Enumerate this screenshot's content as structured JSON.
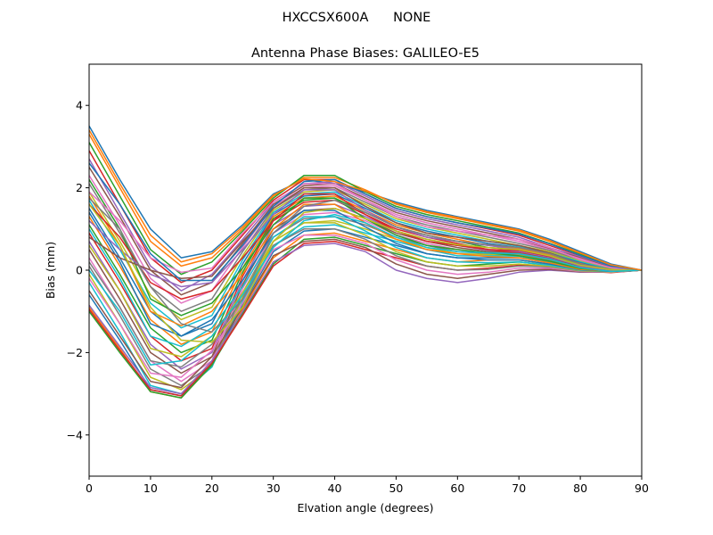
{
  "suptitle": "HXCCSX600A      NONE",
  "chart_data": {
    "type": "line",
    "title": "Antenna Phase Biases: GALILEO-E5",
    "xlabel": "Elvation angle (degrees)",
    "ylabel": "Bias (mm)",
    "xlim": [
      0,
      90
    ],
    "ylim": [
      -5,
      5
    ],
    "xticks": [
      0,
      10,
      20,
      30,
      40,
      50,
      60,
      70,
      80,
      90
    ],
    "yticks": [
      -4,
      -2,
      0,
      2,
      4
    ],
    "x": [
      0,
      5,
      10,
      15,
      20,
      25,
      30,
      35,
      40,
      45,
      50,
      55,
      60,
      65,
      70,
      75,
      80,
      85,
      90
    ],
    "grid": false,
    "legend": "none",
    "color_cycle": [
      "#1f77b4",
      "#ff7f0e",
      "#2ca02c",
      "#d62728",
      "#9467bd",
      "#8c564b",
      "#e377c2",
      "#7f7f7f",
      "#bcbd22",
      "#17becf"
    ],
    "series": [
      {
        "values": [
          3.5,
          2.2,
          1.0,
          0.3,
          0.45,
          1.1,
          1.85,
          2.2,
          2.1,
          1.9,
          1.65,
          1.45,
          1.3,
          1.15,
          1.0,
          0.75,
          0.45,
          0.15,
          0.0
        ]
      },
      {
        "values": [
          3.3,
          2.0,
          0.7,
          0.1,
          0.3,
          1.0,
          1.8,
          2.25,
          2.25,
          1.95,
          1.6,
          1.4,
          1.25,
          1.1,
          0.95,
          0.7,
          0.4,
          0.12,
          0.0
        ]
      },
      {
        "values": [
          3.1,
          1.8,
          0.5,
          -0.1,
          0.2,
          0.95,
          1.75,
          2.3,
          2.3,
          1.9,
          1.55,
          1.35,
          1.2,
          1.05,
          0.9,
          0.65,
          0.38,
          0.1,
          0.0
        ]
      },
      {
        "values": [
          2.9,
          1.6,
          0.3,
          -0.3,
          0.0,
          0.85,
          1.7,
          2.2,
          2.2,
          1.85,
          1.5,
          1.3,
          1.15,
          1.0,
          0.85,
          0.6,
          0.35,
          0.1,
          0.0
        ]
      },
      {
        "values": [
          2.7,
          1.4,
          0.1,
          -0.5,
          -0.1,
          0.75,
          1.65,
          2.1,
          2.15,
          1.8,
          1.45,
          1.25,
          1.1,
          0.95,
          0.8,
          0.55,
          0.32,
          0.08,
          0.0
        ]
      },
      {
        "values": [
          2.5,
          1.3,
          0.0,
          -0.6,
          -0.3,
          0.65,
          1.6,
          2.05,
          2.1,
          1.75,
          1.4,
          1.2,
          1.05,
          0.9,
          0.75,
          0.52,
          0.3,
          0.06,
          0.0
        ]
      },
      {
        "values": [
          2.3,
          1.1,
          -0.2,
          -0.8,
          -0.5,
          0.55,
          1.55,
          2.0,
          2.05,
          1.7,
          1.35,
          1.15,
          1.0,
          0.85,
          0.7,
          0.5,
          0.28,
          0.05,
          0.0
        ]
      },
      {
        "values": [
          2.1,
          0.9,
          -0.4,
          -1.0,
          -0.7,
          0.45,
          1.5,
          1.95,
          2.0,
          1.65,
          1.3,
          1.1,
          0.95,
          0.8,
          0.65,
          0.48,
          0.25,
          0.04,
          0.0
        ]
      },
      {
        "values": [
          1.9,
          0.7,
          -0.6,
          -1.2,
          -0.9,
          0.35,
          1.45,
          1.9,
          1.95,
          1.6,
          1.25,
          1.05,
          0.9,
          0.75,
          0.6,
          0.45,
          0.22,
          0.03,
          0.0
        ]
      },
      {
        "values": [
          1.7,
          0.5,
          -0.8,
          -1.4,
          -1.1,
          0.25,
          1.4,
          1.85,
          1.9,
          1.55,
          1.2,
          1.0,
          0.85,
          0.7,
          0.58,
          0.42,
          0.2,
          0.02,
          0.0
        ]
      },
      {
        "values": [
          1.5,
          0.3,
          -1.0,
          -1.6,
          -1.3,
          0.15,
          1.35,
          1.8,
          1.85,
          1.5,
          1.15,
          0.95,
          0.8,
          0.65,
          0.55,
          0.4,
          0.18,
          0.0,
          0.0
        ]
      },
      {
        "values": [
          1.3,
          0.1,
          -1.2,
          -1.8,
          -1.5,
          0.05,
          1.3,
          1.75,
          1.8,
          1.45,
          1.1,
          0.9,
          0.75,
          0.6,
          0.52,
          0.38,
          0.16,
          -0.01,
          0.0
        ]
      },
      {
        "values": [
          1.1,
          -0.1,
          -1.4,
          -2.0,
          -1.7,
          -0.05,
          1.25,
          1.7,
          1.75,
          1.4,
          1.05,
          0.85,
          0.7,
          0.55,
          0.5,
          0.35,
          0.14,
          -0.02,
          0.0
        ]
      },
      {
        "values": [
          0.9,
          -0.3,
          -1.6,
          -2.2,
          -1.9,
          -0.15,
          1.2,
          1.65,
          1.7,
          1.35,
          1.0,
          0.8,
          0.65,
          0.5,
          0.48,
          0.32,
          0.12,
          -0.03,
          0.0
        ]
      },
      {
        "values": [
          0.7,
          -0.5,
          -1.8,
          -2.4,
          -2.0,
          -0.25,
          1.1,
          1.55,
          1.6,
          1.3,
          0.95,
          0.75,
          0.6,
          0.48,
          0.45,
          0.3,
          0.1,
          -0.03,
          0.0
        ]
      },
      {
        "values": [
          0.5,
          -0.7,
          -2.0,
          -2.5,
          -2.1,
          -0.35,
          1.0,
          1.45,
          1.5,
          1.25,
          0.9,
          0.7,
          0.55,
          0.45,
          0.42,
          0.28,
          0.08,
          -0.04,
          0.0
        ]
      },
      {
        "values": [
          0.3,
          -0.9,
          -2.2,
          -2.7,
          -2.2,
          -0.45,
          0.9,
          1.35,
          1.4,
          1.2,
          0.85,
          0.65,
          0.5,
          0.42,
          0.4,
          0.26,
          0.06,
          -0.04,
          0.0
        ]
      },
      {
        "values": [
          0.1,
          -1.1,
          -2.4,
          -2.8,
          -2.3,
          -0.55,
          0.8,
          1.25,
          1.3,
          1.1,
          0.8,
          0.6,
          0.45,
          0.4,
          0.38,
          0.24,
          0.05,
          -0.05,
          0.0
        ]
      },
      {
        "values": [
          -0.1,
          -1.3,
          -2.6,
          -2.9,
          -2.35,
          -0.65,
          0.7,
          1.15,
          1.2,
          1.0,
          0.75,
          0.55,
          0.4,
          0.38,
          0.36,
          0.22,
          0.04,
          -0.05,
          0.0
        ]
      },
      {
        "values": [
          -0.3,
          -1.5,
          -2.8,
          -3.0,
          -2.35,
          -0.75,
          0.6,
          1.05,
          1.1,
          0.9,
          0.7,
          0.5,
          0.35,
          0.35,
          0.34,
          0.2,
          0.03,
          -0.05,
          0.0
        ]
      },
      {
        "values": [
          -0.6,
          -1.7,
          -2.9,
          -3.05,
          -2.3,
          -0.85,
          0.45,
          0.95,
          1.0,
          0.8,
          0.6,
          0.4,
          0.3,
          0.3,
          0.3,
          0.18,
          0.02,
          -0.05,
          0.0
        ]
      },
      {
        "values": [
          -0.9,
          -1.9,
          -2.95,
          -3.1,
          -2.3,
          -0.95,
          0.3,
          0.85,
          0.9,
          0.7,
          0.5,
          0.3,
          0.2,
          0.25,
          0.25,
          0.15,
          0.01,
          -0.05,
          0.0
        ]
      },
      {
        "values": [
          -1.0,
          -2.0,
          -2.95,
          -3.1,
          -2.3,
          -1.05,
          0.15,
          0.75,
          0.8,
          0.6,
          0.4,
          0.2,
          0.1,
          0.15,
          0.2,
          0.12,
          0.0,
          -0.05,
          0.0
        ]
      },
      {
        "values": [
          -0.95,
          -1.95,
          -2.9,
          -3.05,
          -2.25,
          -1.1,
          0.1,
          0.65,
          0.7,
          0.5,
          0.3,
          0.1,
          0.0,
          0.05,
          0.12,
          0.08,
          -0.02,
          -0.06,
          0.0
        ]
      },
      {
        "values": [
          -0.85,
          -1.85,
          -2.85,
          -3.0,
          -2.2,
          -1.0,
          0.2,
          0.6,
          0.65,
          0.45,
          0.0,
          -0.2,
          -0.3,
          -0.2,
          -0.05,
          0.0,
          -0.05,
          -0.05,
          0.0
        ]
      },
      {
        "values": [
          -0.5,
          -1.6,
          -2.7,
          -2.85,
          -2.1,
          -0.9,
          0.35,
          0.7,
          0.75,
          0.55,
          0.15,
          -0.1,
          -0.2,
          -0.1,
          0.0,
          0.02,
          -0.04,
          -0.05,
          0.0
        ]
      },
      {
        "values": [
          -0.2,
          -1.3,
          -2.5,
          -2.6,
          -1.95,
          -0.8,
          0.5,
          0.85,
          0.85,
          0.65,
          0.25,
          0.0,
          -0.1,
          -0.05,
          0.05,
          0.05,
          -0.03,
          -0.05,
          0.0
        ]
      },
      {
        "values": [
          0.2,
          -0.9,
          -2.2,
          -2.35,
          -1.8,
          -0.7,
          0.6,
          1.0,
          1.0,
          0.75,
          0.35,
          0.1,
          0.0,
          0.02,
          0.1,
          0.08,
          -0.02,
          -0.04,
          0.0
        ]
      },
      {
        "values": [
          0.6,
          -0.5,
          -1.9,
          -2.1,
          -1.6,
          -0.55,
          0.7,
          1.15,
          1.15,
          0.85,
          0.45,
          0.2,
          0.1,
          0.1,
          0.15,
          0.1,
          -0.01,
          -0.04,
          0.0
        ]
      },
      {
        "values": [
          1.0,
          -0.2,
          -1.6,
          -1.85,
          -1.4,
          -0.4,
          0.8,
          1.3,
          1.3,
          0.95,
          0.55,
          0.3,
          0.2,
          0.18,
          0.2,
          0.12,
          0.0,
          -0.03,
          0.0
        ]
      },
      {
        "values": [
          1.4,
          0.2,
          -1.3,
          -1.6,
          -1.2,
          -0.25,
          0.9,
          1.45,
          1.45,
          1.05,
          0.65,
          0.4,
          0.3,
          0.25,
          0.25,
          0.15,
          0.01,
          -0.03,
          0.0
        ]
      },
      {
        "values": [
          1.8,
          0.6,
          -1.0,
          -1.35,
          -1.0,
          -0.1,
          1.0,
          1.6,
          1.6,
          1.15,
          0.75,
          0.5,
          0.4,
          0.33,
          0.3,
          0.18,
          0.02,
          -0.02,
          0.0
        ]
      },
      {
        "values": [
          2.2,
          1.0,
          -0.7,
          -1.1,
          -0.8,
          0.05,
          1.1,
          1.75,
          1.75,
          1.25,
          0.85,
          0.6,
          0.5,
          0.42,
          0.35,
          0.22,
          0.04,
          -0.02,
          0.0
        ]
      },
      {
        "values": [
          1.6,
          0.8,
          -0.3,
          -0.7,
          -0.5,
          0.3,
          1.2,
          1.85,
          1.85,
          1.35,
          0.95,
          0.7,
          0.6,
          0.5,
          0.42,
          0.28,
          0.06,
          -0.01,
          0.0
        ]
      },
      {
        "values": [
          1.2,
          0.5,
          -0.1,
          -0.4,
          -0.3,
          0.5,
          1.35,
          1.95,
          1.95,
          1.45,
          1.05,
          0.8,
          0.7,
          0.6,
          0.5,
          0.35,
          0.1,
          0.0,
          0.0
        ]
      },
      {
        "values": [
          0.8,
          0.3,
          0.0,
          -0.2,
          -0.15,
          0.7,
          1.5,
          2.0,
          2.0,
          1.55,
          1.15,
          0.9,
          0.8,
          0.7,
          0.6,
          0.42,
          0.15,
          0.02,
          0.0
        ]
      },
      {
        "values": [
          1.9,
          1.2,
          0.3,
          -0.05,
          0.05,
          0.9,
          1.65,
          2.1,
          2.1,
          1.7,
          1.3,
          1.05,
          0.95,
          0.85,
          0.75,
          0.55,
          0.25,
          0.06,
          0.0
        ]
      },
      {
        "values": [
          1.75,
          1.0,
          -0.4,
          -1.3,
          -1.5,
          -0.7,
          0.9,
          1.55,
          1.7,
          1.4,
          1.05,
          0.85,
          0.7,
          0.62,
          0.55,
          0.4,
          0.15,
          0.02,
          0.0
        ]
      },
      {
        "values": [
          1.6,
          0.6,
          -0.9,
          -1.7,
          -1.75,
          -0.9,
          0.7,
          1.4,
          1.5,
          1.25,
          0.95,
          0.75,
          0.62,
          0.55,
          0.5,
          0.35,
          0.12,
          0.01,
          0.0
        ]
      },
      {
        "values": [
          0.0,
          -1.0,
          -2.3,
          -2.2,
          -1.6,
          -0.6,
          0.55,
          1.2,
          1.35,
          1.15,
          0.8,
          0.55,
          0.45,
          0.42,
          0.4,
          0.27,
          0.06,
          -0.03,
          0.0
        ]
      },
      {
        "values": [
          2.6,
          1.6,
          0.4,
          -0.25,
          -0.25,
          0.6,
          1.55,
          2.15,
          2.2,
          1.85,
          1.5,
          1.3,
          1.15,
          1.02,
          0.88,
          0.64,
          0.36,
          0.1,
          0.0
        ]
      },
      {
        "values": [
          3.4,
          2.1,
          0.85,
          0.2,
          0.4,
          1.05,
          1.82,
          2.22,
          2.15,
          1.92,
          1.62,
          1.42,
          1.28,
          1.12,
          0.98,
          0.72,
          0.42,
          0.13,
          0.0
        ]
      }
    ]
  }
}
